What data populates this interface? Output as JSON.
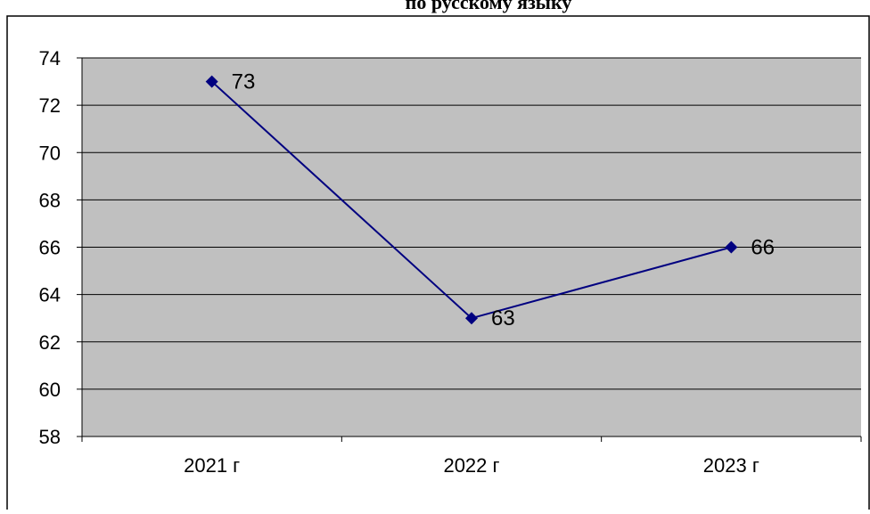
{
  "chart_data": {
    "type": "line",
    "title": "по русскому языку",
    "categories": [
      "2021 г",
      "2022 г",
      "2023 г"
    ],
    "series": [
      {
        "values": [
          73,
          63,
          66
        ]
      }
    ],
    "data_labels": [
      "73",
      "63",
      "66"
    ],
    "ylim": [
      58,
      74
    ],
    "yticks": [
      58,
      60,
      62,
      64,
      66,
      68,
      70,
      72,
      74
    ],
    "ytick_labels": [
      "58",
      "60",
      "62",
      "64",
      "66",
      "68",
      "70",
      "72",
      "74"
    ],
    "grid": true,
    "legend": "none",
    "colors": {
      "plot_background": "#c0c0c0",
      "line": "#000080",
      "marker": "#000080",
      "gridline": "#000000",
      "frame": "#000000"
    }
  }
}
